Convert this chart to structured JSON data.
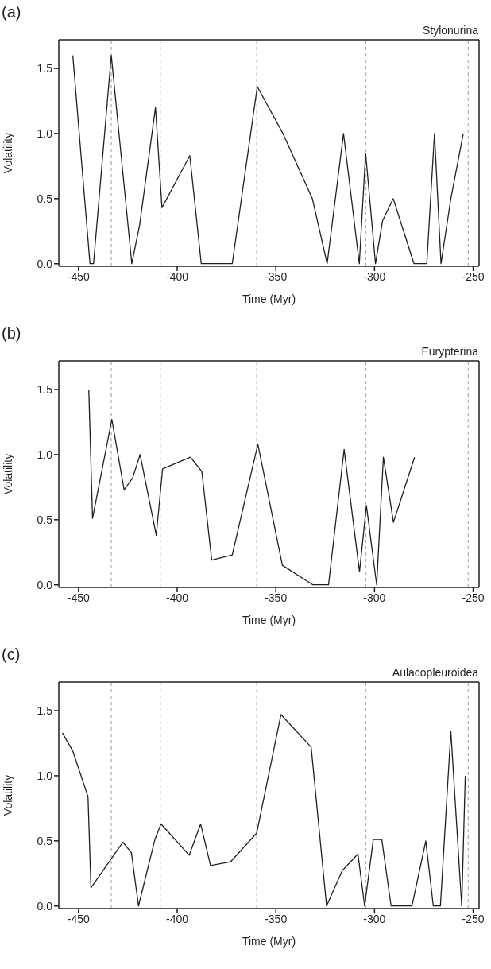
{
  "chart_data": [
    {
      "type": "line",
      "title": "Stylonurina",
      "annotations": [
        "(a)"
      ],
      "xlabel": "Time (Myr)",
      "ylabel": "Volatility",
      "xlim": [
        -460,
        -247
      ],
      "xticks": [
        -450,
        -400,
        -350,
        -300,
        -250
      ],
      "ylim": [
        -0.02,
        1.72
      ],
      "yticks": [
        {
          "value": 0,
          "label": "0.0"
        },
        {
          "value": 0.5,
          "label": "0.5"
        },
        {
          "value": 1,
          "label": "1.0"
        },
        {
          "value": 1.5,
          "label": "1.5"
        }
      ],
      "grid": false,
      "marker": "none",
      "line_style": "solid",
      "series": [
        {
          "color": "#231f20",
          "x": [
            -452.9,
            -444.2,
            -442.4,
            -433.4,
            -423.0,
            -419.0,
            -411.0,
            -407.7,
            -393.6,
            -387.8,
            -372.1,
            -359.4,
            -346.4,
            -331.5,
            -324.0,
            -315.7,
            -307.7,
            -304.5,
            -299.5,
            -295.9,
            -290.5,
            -280.0,
            -273.5,
            -269.6,
            -266.3,
            -261.3,
            -255.0
          ],
          "values": [
            1.6,
            0,
            0,
            1.6,
            0,
            0.3,
            1.2,
            0.43,
            0.83,
            0,
            0,
            1.36,
            1.0,
            0.5,
            0,
            1.0,
            0,
            0.85,
            0,
            0.33,
            0.5,
            0,
            0,
            1.0,
            0,
            0.5,
            1.0
          ]
        }
      ],
      "ref_lines": [
        {
          "axis": "x",
          "value": -433.4,
          "color": "#b3b3b3",
          "line_style": "dashed"
        },
        {
          "axis": "x",
          "value": -408.6,
          "color": "#b3b3b3",
          "line_style": "dashed"
        },
        {
          "axis": "x",
          "value": -359.7,
          "color": "#b3b3b3",
          "line_style": "dashed"
        },
        {
          "axis": "x",
          "value": -304.4,
          "color": "#b3b3b3",
          "line_style": "dashed"
        },
        {
          "axis": "x",
          "value": -252.5,
          "color": "#b3b3b3",
          "line_style": "dashed"
        }
      ]
    },
    {
      "type": "line",
      "title": "Eurypterina",
      "annotations": [
        "(b)"
      ],
      "xlabel": "Time (Myr)",
      "ylabel": "Volatility",
      "xlim": [
        -460,
        -247
      ],
      "xticks": [
        -450,
        -400,
        -350,
        -300,
        -250
      ],
      "ylim": [
        -0.02,
        1.72
      ],
      "yticks": [
        {
          "value": 0,
          "label": "0.0"
        },
        {
          "value": 0.5,
          "label": "0.5"
        },
        {
          "value": 1,
          "label": "1.0"
        },
        {
          "value": 1.5,
          "label": "1.5"
        }
      ],
      "grid": false,
      "marker": "none",
      "line_style": "solid",
      "series": [
        {
          "color": "#231f20",
          "x": [
            -444.8,
            -442.9,
            -433.1,
            -426.9,
            -422.6,
            -418.8,
            -410.6,
            -407.4,
            -393.3,
            -387.5,
            -382.5,
            -372.1,
            -359.1,
            -346.7,
            -331.2,
            -323.3,
            -315.4,
            -307.6,
            -304.1,
            -298.9,
            -295.5,
            -290.4,
            -279.7
          ],
          "values": [
            1.5,
            0.51,
            1.27,
            0.73,
            0.82,
            1.0,
            0.38,
            0.89,
            0.98,
            0.87,
            0.19,
            0.23,
            1.08,
            0.15,
            0,
            0,
            1.04,
            0.1,
            0.61,
            0,
            0.98,
            0.48,
            0.98
          ]
        }
      ],
      "ref_lines": [
        {
          "axis": "x",
          "value": -433.4,
          "color": "#b3b3b3",
          "line_style": "dashed"
        },
        {
          "axis": "x",
          "value": -408.6,
          "color": "#b3b3b3",
          "line_style": "dashed"
        },
        {
          "axis": "x",
          "value": -359.7,
          "color": "#b3b3b3",
          "line_style": "dashed"
        },
        {
          "axis": "x",
          "value": -304.4,
          "color": "#b3b3b3",
          "line_style": "dashed"
        },
        {
          "axis": "x",
          "value": -252.5,
          "color": "#b3b3b3",
          "line_style": "dashed"
        }
      ]
    },
    {
      "type": "line",
      "title": "Aulacopleuroidea",
      "annotations": [
        "(c)"
      ],
      "xlabel": "Time (Myr)",
      "ylabel": "Volatility",
      "xlim": [
        -460,
        -247
      ],
      "xticks": [
        -450,
        -400,
        -350,
        -300,
        -250
      ],
      "ylim": [
        -0.02,
        1.72
      ],
      "yticks": [
        {
          "value": 0,
          "label": "0.0"
        },
        {
          "value": 0.5,
          "label": "0.5"
        },
        {
          "value": 1,
          "label": "1.0"
        },
        {
          "value": 1.5,
          "label": "1.5"
        }
      ],
      "grid": false,
      "marker": "none",
      "line_style": "solid",
      "series": [
        {
          "color": "#231f20",
          "x": [
            -458.2,
            -452.9,
            -445.2,
            -443.7,
            -427.5,
            -423.2,
            -419.6,
            -411.3,
            -408.2,
            -393.9,
            -388.1,
            -383.1,
            -372.9,
            -359.7,
            -347.4,
            -332.1,
            -324.3,
            -316.4,
            -308.4,
            -305.0,
            -300.6,
            -296.3,
            -291.6,
            -281.0,
            -274.0,
            -270.2,
            -266.6,
            -261.3,
            -255.8,
            -254.0
          ],
          "values": [
            1.33,
            1.19,
            0.84,
            0.14,
            0.49,
            0.41,
            0,
            0.51,
            0.63,
            0.39,
            0.63,
            0.31,
            0.34,
            0.56,
            1.47,
            1.22,
            0,
            0.27,
            0.4,
            0,
            0.51,
            0.51,
            0,
            0,
            0.5,
            0,
            0,
            1.34,
            0,
            1.0
          ]
        }
      ],
      "ref_lines": [
        {
          "axis": "x",
          "value": -433.4,
          "color": "#b3b3b3",
          "line_style": "dashed"
        },
        {
          "axis": "x",
          "value": -408.6,
          "color": "#b3b3b3",
          "line_style": "dashed"
        },
        {
          "axis": "x",
          "value": -359.7,
          "color": "#b3b3b3",
          "line_style": "dashed"
        },
        {
          "axis": "x",
          "value": -304.4,
          "color": "#b3b3b3",
          "line_style": "dashed"
        },
        {
          "axis": "x",
          "value": -252.5,
          "color": "#b3b3b3",
          "line_style": "dashed"
        }
      ]
    }
  ]
}
